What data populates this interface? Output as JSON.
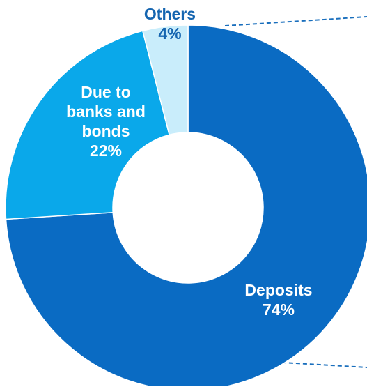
{
  "chart_data": {
    "type": "pie",
    "donut": true,
    "slices": [
      {
        "name": "Deposits",
        "label_lines": [
          "Deposits"
        ],
        "value": 74,
        "value_label": "74%",
        "color": "#0a6bc3",
        "label_color": "#ffffff"
      },
      {
        "name": "Due to banks and bonds",
        "label_lines": [
          "Due to",
          "banks and",
          "bonds"
        ],
        "value": 22,
        "value_label": "22%",
        "color": "#0aa8ea",
        "label_color": "#ffffff"
      },
      {
        "name": "Others",
        "label_lines": [
          "Others"
        ],
        "value": 4,
        "value_label": "4%",
        "color": "#c9edfb",
        "label_color": "#1565b0"
      }
    ],
    "start_angle_deg": 0,
    "direction": "clockwise",
    "connector_lines": {
      "style": "dashed",
      "color": "#1a6fbd"
    }
  }
}
